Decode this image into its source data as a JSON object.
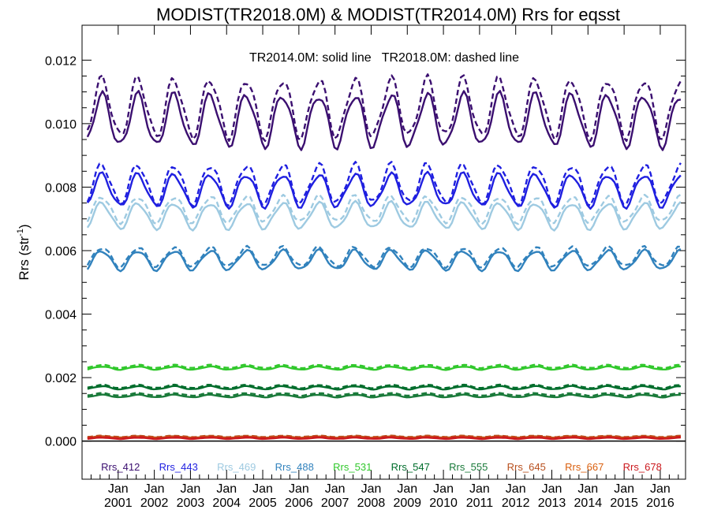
{
  "chart_data": {
    "type": "line",
    "title": "MODIST(TR2018.0M) & MODIST(TR2014.0M)  Rrs for eqsst",
    "subtitle": "TR2014.0M: solid line   TR2018.0M: dashed line",
    "ylabel_main": "Rrs (str",
    "ylabel_sup": "-1",
    "ylabel_close": ")",
    "xlabel": "",
    "x_range": [
      2000.0,
      2016.7
    ],
    "ylim": [
      -0.0012,
      0.0131
    ],
    "yticks": [
      0.0,
      0.002,
      0.004,
      0.006,
      0.008,
      0.01,
      0.012
    ],
    "ytick_labels": [
      "0.000",
      "0.002",
      "0.004",
      "0.006",
      "0.008",
      "0.010",
      "0.012"
    ],
    "xtick_month": "Jan",
    "xtick_years": [
      "2001",
      "2002",
      "2003",
      "2004",
      "2005",
      "2006",
      "2007",
      "2008",
      "2009",
      "2010",
      "2011",
      "2012",
      "2013",
      "2014",
      "2015",
      "2016"
    ],
    "xtick_positions": [
      2001,
      2002,
      2003,
      2004,
      2005,
      2006,
      2007,
      2008,
      2009,
      2010,
      2011,
      2012,
      2013,
      2014,
      2015,
      2016
    ],
    "grid": false,
    "legend_placement": "bottom row inside plot",
    "series": [
      {
        "name": "Rrs_412",
        "color": "#3b0f70",
        "mean_solid": 0.0101,
        "amp_solid": 0.0008,
        "mean_dashed": 0.0105,
        "amp_dashed": 0.0009
      },
      {
        "name": "Rrs_443",
        "color": "#1f1fe0",
        "mean_solid": 0.0079,
        "amp_solid": 0.0005,
        "mean_dashed": 0.0081,
        "amp_dashed": 0.0006
      },
      {
        "name": "Rrs_469",
        "color": "#9ecae1",
        "mean_solid": 0.0071,
        "amp_solid": 0.0004,
        "mean_dashed": 0.0073,
        "amp_dashed": 0.0004
      },
      {
        "name": "Rrs_488",
        "color": "#3182bd",
        "mean_solid": 0.0057,
        "amp_solid": 0.0003,
        "mean_dashed": 0.0058,
        "amp_dashed": 0.0003
      },
      {
        "name": "Rrs_531",
        "color": "#31c82c",
        "mean_solid": 0.0023,
        "amp_solid": 5e-05,
        "mean_dashed": 0.00235,
        "amp_dashed": 5e-05
      },
      {
        "name": "Rrs_547",
        "color": "#006d2c",
        "mean_solid": 0.00168,
        "amp_solid": 5e-05,
        "mean_dashed": 0.00172,
        "amp_dashed": 5e-05
      },
      {
        "name": "Rrs_555",
        "color": "#1a7a3a",
        "mean_solid": 0.00142,
        "amp_solid": 4e-05,
        "mean_dashed": 0.00147,
        "amp_dashed": 4e-05
      },
      {
        "name": "Rrs_645",
        "color": "#b8501e",
        "mean_solid": 0.00013,
        "amp_solid": 2e-05,
        "mean_dashed": 0.00015,
        "amp_dashed": 2e-05
      },
      {
        "name": "Rrs_667",
        "color": "#d95f0e",
        "mean_solid": 0.0001,
        "amp_solid": 2e-05,
        "mean_dashed": 0.00012,
        "amp_dashed": 2e-05
      },
      {
        "name": "Rrs_678",
        "color": "#cb181d",
        "mean_solid": 9e-05,
        "amp_solid": 2e-05,
        "mean_dashed": 0.00011,
        "amp_dashed": 2e-05
      }
    ]
  }
}
